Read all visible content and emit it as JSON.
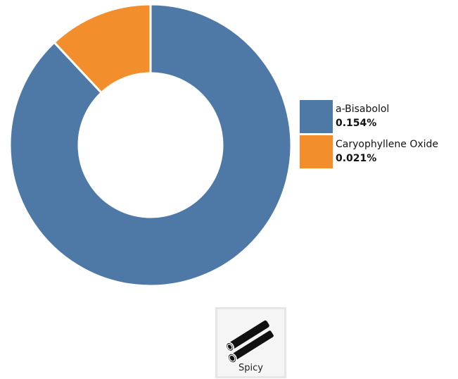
{
  "chart_data": {
    "type": "pie",
    "donut": true,
    "title": "",
    "legend_position": "right",
    "series": [
      {
        "name": "a-Bisabolol",
        "value": 0.154,
        "label": "0.154%",
        "color": "#4e79a7"
      },
      {
        "name": "Caryophyllene Oxide",
        "value": 0.021,
        "label": "0.021%",
        "color": "#f28e2b"
      }
    ]
  },
  "flavor": {
    "label": "Spicy",
    "icon": "cinnamon-sticks-icon"
  }
}
